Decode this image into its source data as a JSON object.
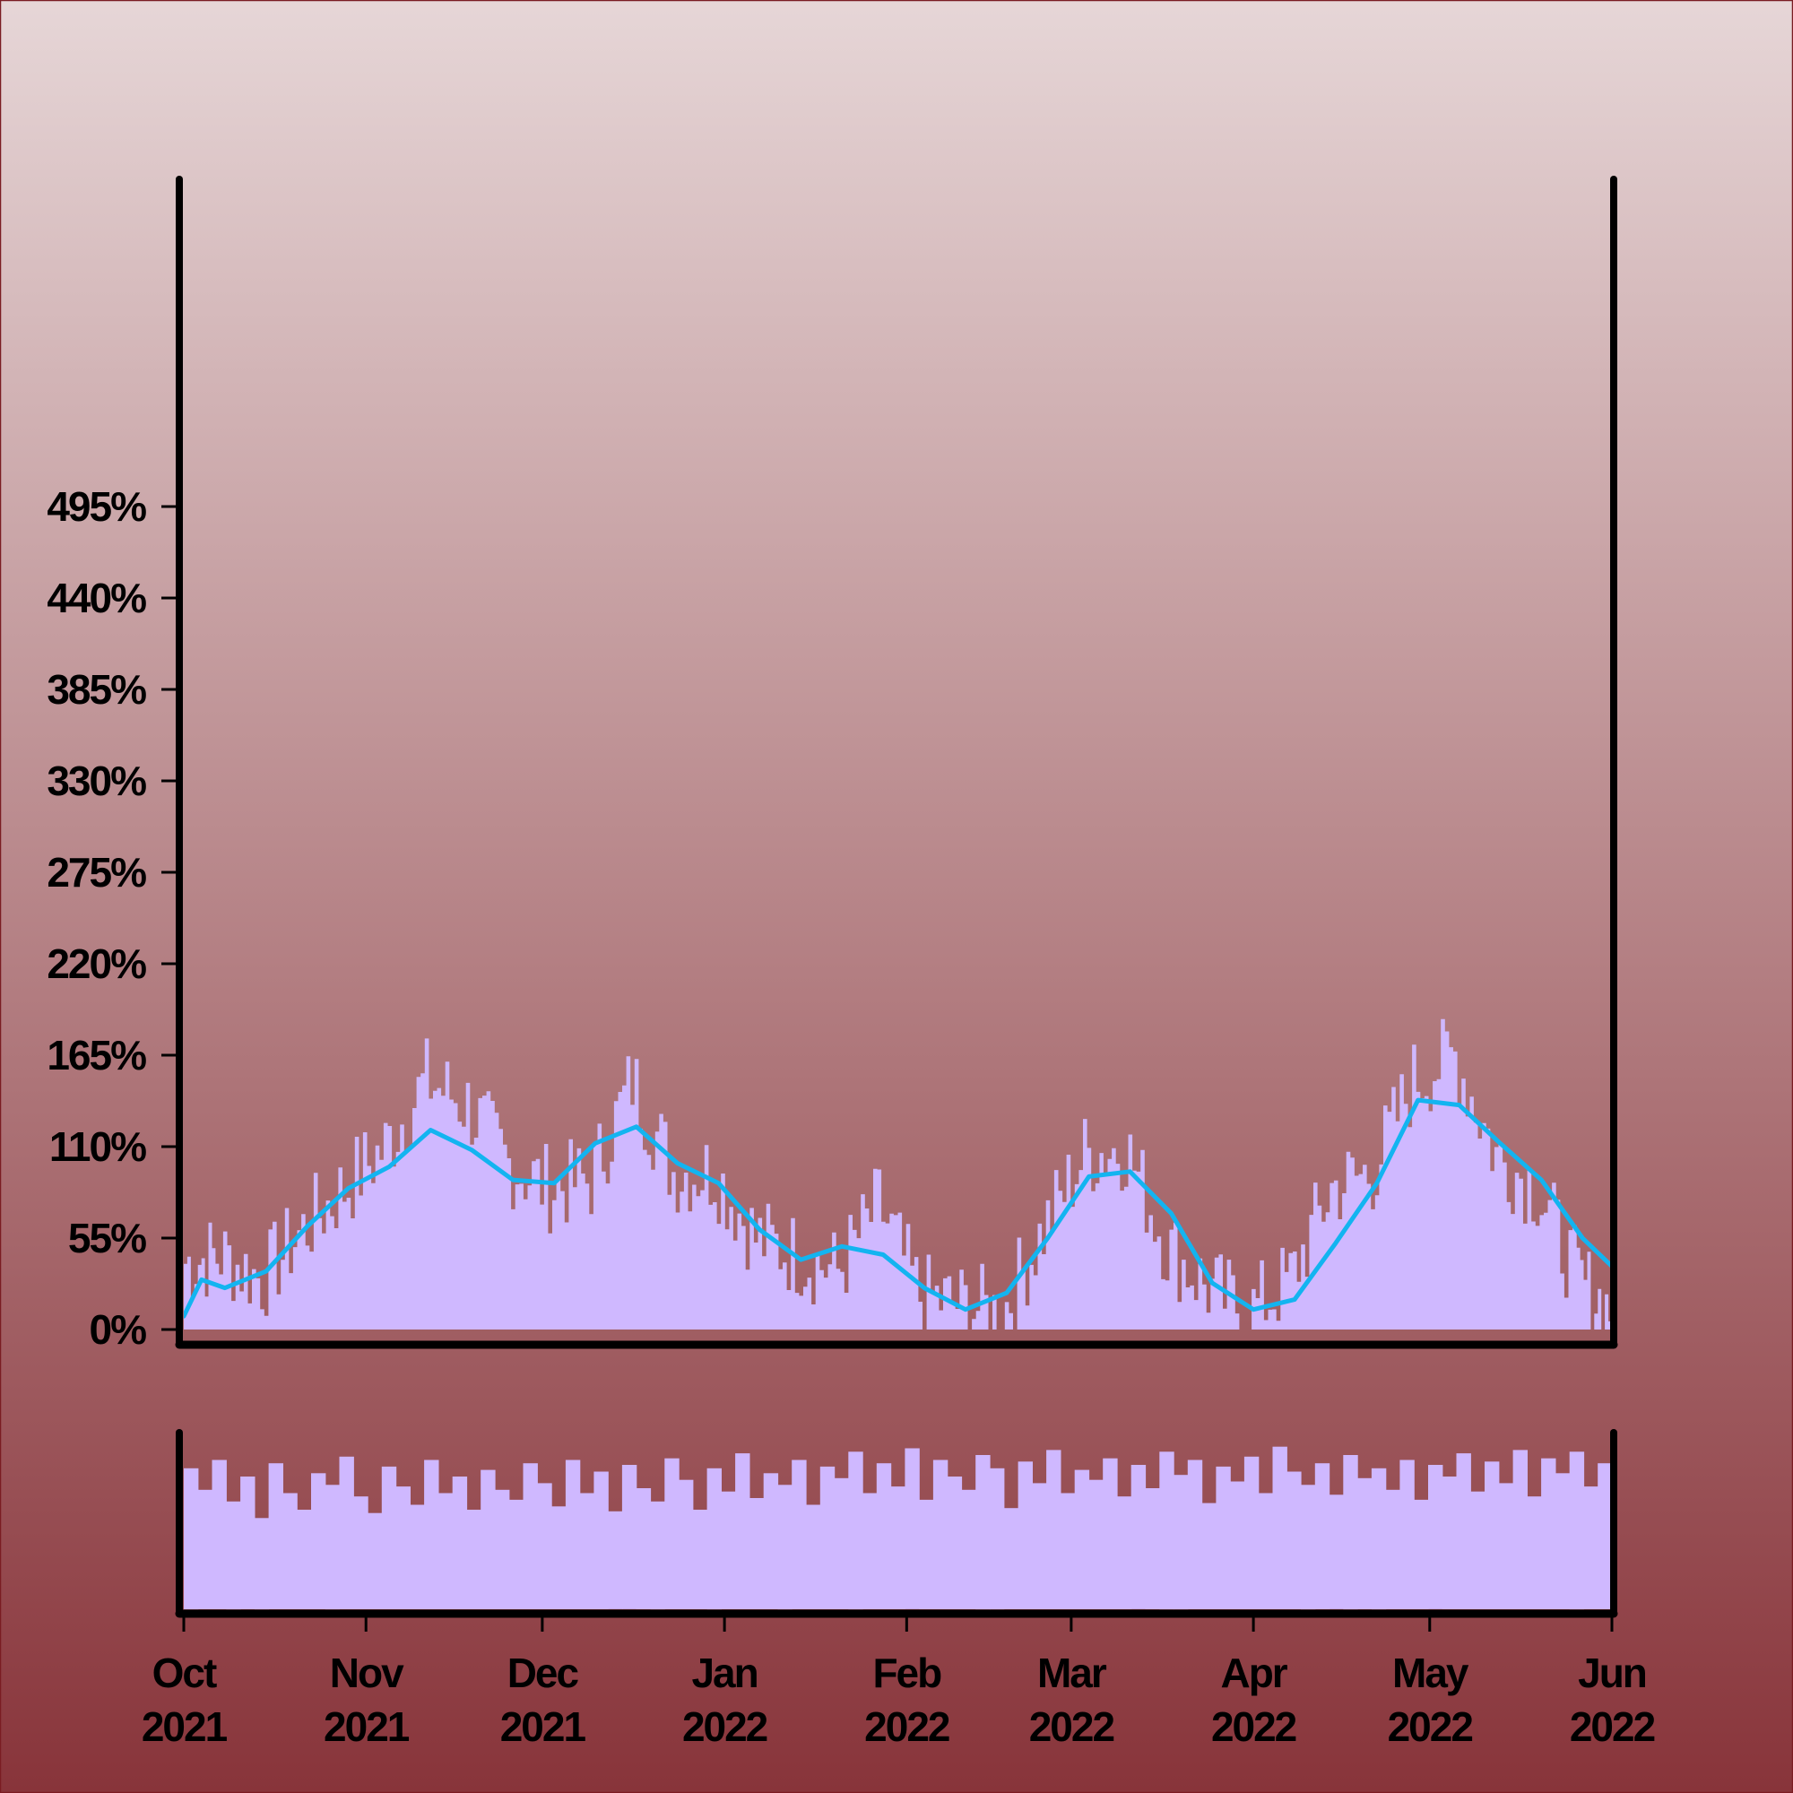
{
  "colors": {
    "background_top": "#e6d6d7",
    "background_bottom": "#88343a",
    "area_fill": "#cfb8ff",
    "line": "#13b4f0",
    "axis": "#000000"
  },
  "chart_data": [
    {
      "type": "area",
      "panel": "main",
      "title": "",
      "xlabel": "",
      "ylabel": "",
      "ylim": [
        0,
        550
      ],
      "y_ticks": [
        0,
        55,
        110,
        165,
        220,
        275,
        330,
        385,
        440,
        495
      ],
      "y_tick_labels": [
        "0%",
        "55%",
        "110%",
        "165%",
        "220%",
        "275%",
        "330%",
        "385%",
        "440%",
        "495%"
      ],
      "x_range": [
        "2021-10-01",
        "2022-06-01"
      ],
      "grid": false,
      "series": [
        {
          "kind": "area",
          "x": [
            "2021-10-01",
            "2021-10-07",
            "2021-10-14",
            "2021-10-21",
            "2021-10-28",
            "2021-11-04",
            "2021-11-11",
            "2021-11-18",
            "2021-11-25",
            "2021-12-02",
            "2021-12-09",
            "2021-12-16",
            "2021-12-23",
            "2021-12-30",
            "2022-01-06",
            "2022-01-13",
            "2022-01-20",
            "2022-01-27",
            "2022-02-03",
            "2022-02-10",
            "2022-02-17",
            "2022-02-24",
            "2022-03-03",
            "2022-03-10",
            "2022-03-17",
            "2022-03-24",
            "2022-03-31",
            "2022-04-07",
            "2022-04-14",
            "2022-04-21",
            "2022-04-28",
            "2022-05-05",
            "2022-05-12",
            "2022-05-19",
            "2022-05-26",
            "2022-06-01"
          ],
          "values": [
            40,
            45,
            30,
            60,
            85,
            110,
            150,
            135,
            100,
            85,
            90,
            150,
            95,
            95,
            55,
            45,
            35,
            75,
            20,
            15,
            10,
            60,
            105,
            110,
            50,
            25,
            10,
            30,
            85,
            95,
            150,
            165,
            105,
            85,
            30,
            10
          ]
        },
        {
          "kind": "line",
          "x": [
            "2021-10-01",
            "2021-10-04",
            "2021-10-08",
            "2021-10-15",
            "2021-10-22",
            "2021-10-29",
            "2021-11-05",
            "2021-11-12",
            "2021-11-19",
            "2021-11-26",
            "2021-12-03",
            "2021-12-10",
            "2021-12-17",
            "2021-12-24",
            "2021-12-31",
            "2022-01-07",
            "2022-01-14",
            "2022-01-21",
            "2022-01-28",
            "2022-02-04",
            "2022-02-11",
            "2022-02-18",
            "2022-02-25",
            "2022-03-04",
            "2022-03-11",
            "2022-03-18",
            "2022-03-25",
            "2022-04-01",
            "2022-04-08",
            "2022-04-15",
            "2022-04-22",
            "2022-04-29",
            "2022-05-06",
            "2022-05-13",
            "2022-05-20",
            "2022-05-27",
            "2022-06-01"
          ],
          "values": [
            8,
            30,
            25,
            35,
            62,
            85,
            98,
            120,
            108,
            90,
            88,
            112,
            122,
            100,
            88,
            60,
            42,
            50,
            45,
            25,
            12,
            22,
            55,
            92,
            95,
            70,
            28,
            12,
            18,
            52,
            88,
            138,
            135,
            112,
            90,
            55,
            38
          ]
        }
      ]
    },
    {
      "type": "bar",
      "panel": "navigator",
      "title": "",
      "x_range": [
        "2021-10-01",
        "2022-06-01"
      ],
      "x_tick_labels": [
        {
          "month": "Oct",
          "year": "2021"
        },
        {
          "month": "Nov",
          "year": "2021"
        },
        {
          "month": "Dec",
          "year": "2021"
        },
        {
          "month": "Jan",
          "year": "2022"
        },
        {
          "month": "Feb",
          "year": "2022"
        },
        {
          "month": "Mar",
          "year": "2022"
        },
        {
          "month": "Apr",
          "year": "2022"
        },
        {
          "month": "May",
          "year": "2022"
        },
        {
          "month": "Jun",
          "year": "2022"
        }
      ],
      "x_ticks": [
        "2021-10-01",
        "2021-11-01",
        "2021-12-01",
        "2022-01-01",
        "2022-02-01",
        "2022-03-01",
        "2022-04-01",
        "2022-05-01",
        "2022-06-01"
      ],
      "ylim": [
        0,
        1
      ],
      "series": [
        {
          "kind": "bars",
          "values": [
            0.85,
            0.72,
            0.9,
            0.65,
            0.8,
            0.55,
            0.88,
            0.7,
            0.6,
            0.82,
            0.75,
            0.92,
            0.68,
            0.58,
            0.86,
            0.74,
            0.63,
            0.9,
            0.7,
            0.8,
            0.6,
            0.84,
            0.72,
            0.66,
            0.88,
            0.76,
            0.62,
            0.9,
            0.7,
            0.83,
            0.59,
            0.87,
            0.73,
            0.65,
            0.91,
            0.78,
            0.6,
            0.85,
            0.71,
            0.94,
            0.67,
            0.82,
            0.75,
            0.9,
            0.63,
            0.86,
            0.79,
            0.95,
            0.7,
            0.88,
            0.74,
            0.97,
            0.66,
            0.9,
            0.8,
            0.72,
            0.93,
            0.85,
            0.61,
            0.89,
            0.76,
            0.96,
            0.7,
            0.84,
            0.78,
            0.91,
            0.68,
            0.87,
            0.73,
            0.95,
            0.81,
            0.9,
            0.64,
            0.86,
            0.77,
            0.92,
            0.7,
            0.98,
            0.83,
            0.75,
            0.88,
            0.69,
            0.93,
            0.79,
            0.85,
            0.72,
            0.9,
            0.66,
            0.87,
            0.8,
            0.94,
            0.71,
            0.89,
            0.76,
            0.96,
            0.68,
            0.91,
            0.82,
            0.95,
            0.74,
            0.88
          ]
        }
      ]
    }
  ]
}
